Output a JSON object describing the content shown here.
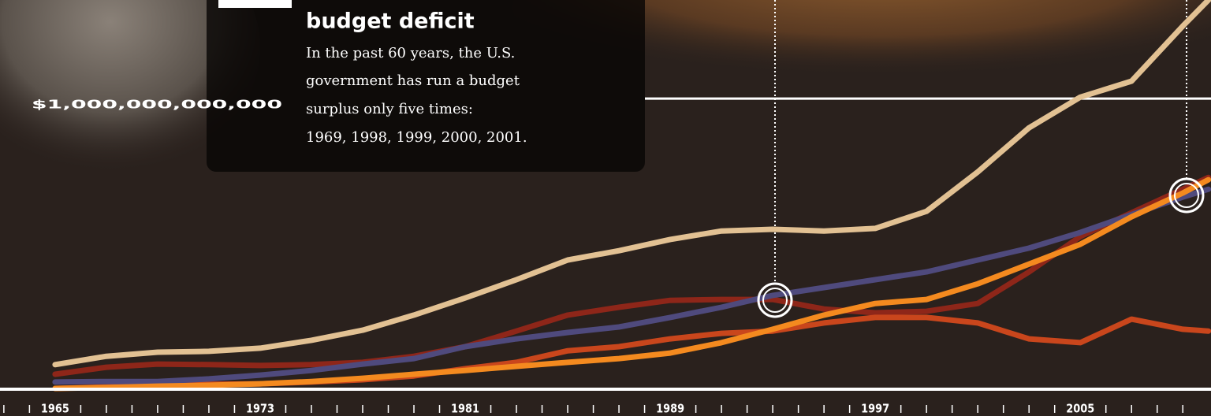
{
  "chart_data": {
    "type": "line",
    "title": "budget deficit",
    "annotation": [
      "In the past 60 years, the U.S.",
      "government has run a budget",
      "surplus only five times:",
      "1969, 1998, 1999, 2000, 2001."
    ],
    "x": [
      1965,
      1967,
      1969,
      1971,
      1973,
      1975,
      1977,
      1979,
      1981,
      1983,
      1985,
      1987,
      1989,
      1991,
      1993,
      1995,
      1997,
      1999,
      2001,
      2003,
      2005,
      2007,
      2009,
      2010
    ],
    "series": [
      {
        "color": "#e2c193",
        "values": [
          82000000000.0,
          111000000000.0,
          125000000000.0,
          128000000000.0,
          139000000000.0,
          166000000000.0,
          201000000000.0,
          253000000000.0,
          312000000000.0,
          375000000000.0,
          443000000000.0,
          475000000000.0,
          514000000000.0,
          543000000000.0,
          549000000000.0,
          543000000000.0,
          552000000000.0,
          611000000000.0,
          747000000000.0,
          899000000000.0,
          1005000000000.0,
          1060000000000.0,
          1250000000000.0,
          1340000000000.0
        ]
      },
      {
        "color": "#8e2619",
        "values": [
          49000000000.0,
          73000000000.0,
          84000000000.0,
          82000000000.0,
          79000000000.0,
          82000000000.0,
          90000000000.0,
          111000000000.0,
          144000000000.0,
          198000000000.0,
          253000000000.0,
          280000000000.0,
          304000000000.0,
          307000000000.0,
          307000000000.0,
          274000000000.0,
          261000000000.0,
          266000000000.0,
          293000000000.0,
          402000000000.0,
          524000000000.0,
          606000000000.0,
          687000000000.0,
          728000000000.0
        ]
      },
      {
        "color": "#c9461c",
        "values": [
          0,
          5000000000.0,
          11000000000.0,
          14000000000.0,
          16000000000.0,
          22000000000.0,
          30000000000.0,
          43000000000.0,
          68000000000.0,
          90000000000.0,
          130000000000.0,
          144000000000.0,
          171000000000.0,
          190000000000.0,
          198000000000.0,
          226000000000.0,
          245000000000.0,
          245000000000.0,
          226000000000.0,
          171000000000.0,
          158000000000.0,
          239000000000.0,
          204000000000.0,
          198000000000.0
        ]
      },
      {
        "color": "#4f4a7d",
        "values": [
          22000000000.0,
          24000000000.0,
          24000000000.0,
          33000000000.0,
          46000000000.0,
          62000000000.0,
          84000000000.0,
          103000000000.0,
          144000000000.0,
          171000000000.0,
          193000000000.0,
          212000000000.0,
          245000000000.0,
          280000000000.0,
          321000000000.0,
          348000000000.0,
          375000000000.0,
          402000000000.0,
          443000000000.0,
          484000000000.0,
          538000000000.0,
          600000000000.0,
          660000000000.0,
          687000000000.0
        ]
      },
      {
        "color": "#f48a1f",
        "values": [
          0,
          3000000000.0,
          8000000000.0,
          11000000000.0,
          16000000000.0,
          24000000000.0,
          35000000000.0,
          49000000000.0,
          62000000000.0,
          76000000000.0,
          90000000000.0,
          103000000000.0,
          122000000000.0,
          158000000000.0,
          204000000000.0,
          253000000000.0,
          293000000000.0,
          307000000000.0,
          361000000000.0,
          429000000000.0,
          497000000000.0,
          592000000000.0,
          674000000000.0,
          720000000000.0
        ]
      }
    ],
    "xlim": [
      1962.85,
      2010.1
    ],
    "ylim": [
      0,
      1340000000000.0
    ],
    "xticks": [
      1965,
      1973,
      1981,
      1989,
      1997,
      2005
    ],
    "xminorticks": [
      1963,
      1964,
      1966,
      1967,
      1968,
      1969,
      1970,
      1971,
      1972,
      1974,
      1975,
      1976,
      1977,
      1978,
      1979,
      1980,
      1982,
      1983,
      1984,
      1985,
      1986,
      1987,
      1988,
      1990,
      1991,
      1992,
      1993,
      1994,
      1995,
      1996,
      1998,
      1999,
      2000,
      2001,
      2002,
      2003,
      2004,
      2006,
      2007,
      2008,
      2009
    ],
    "yticks": [
      {
        "value": 1000000000000,
        "label": "$1,000,000,000,000"
      }
    ],
    "grid": true
  }
}
